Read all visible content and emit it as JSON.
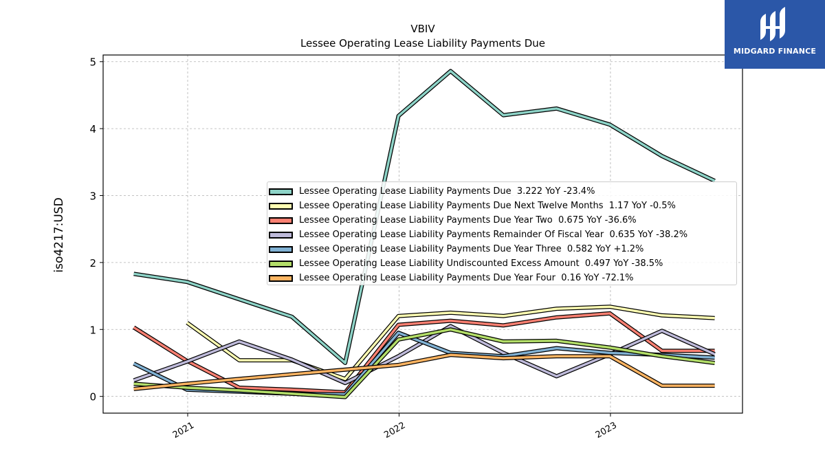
{
  "chart_data": {
    "type": "line",
    "title": "VBIV",
    "subtitle": "Lessee Operating Lease Liability Payments Due",
    "xlabel": "",
    "ylabel": "iso4217:USD",
    "ylim": [
      -0.25,
      5.1
    ],
    "xlim": [
      "2020-08-08",
      "2023-08-17"
    ],
    "yticks": [
      0,
      1,
      2,
      3,
      4,
      5
    ],
    "xticks": [
      "2021",
      "2022",
      "2023"
    ],
    "grid": true,
    "legend_position": "center-right",
    "x": [
      "2020-09-30",
      "2020-12-31",
      "2021-03-31",
      "2021-06-30",
      "2021-09-30",
      "2021-12-31",
      "2022-03-31",
      "2022-06-30",
      "2022-09-30",
      "2022-12-31",
      "2023-03-31",
      "2023-06-30"
    ],
    "series": [
      {
        "name": "Lessee Operating Lease Liability Payments Due",
        "legend_label": "Lessee Operating Lease Liability Payments Due  3.222 YoY -23.4%",
        "color": "#8dd3c7",
        "values": [
          1.83,
          1.71,
          1.45,
          1.19,
          0.5,
          4.19,
          4.86,
          4.2,
          4.3,
          4.06,
          3.59,
          3.22
        ]
      },
      {
        "name": "Lessee Operating Lease Liability Payments Due Next Twelve Months",
        "legend_label": "Lessee Operating Lease Liability Payments Due Next Twelve Months  1.17 YoY -0.5%",
        "color": "#ffffb3",
        "values": [
          null,
          1.1,
          0.54,
          0.54,
          0.26,
          1.2,
          1.25,
          1.2,
          1.31,
          1.34,
          1.21,
          1.17
        ]
      },
      {
        "name": "Lessee Operating Lease Liability Payments Due Year Two",
        "legend_label": "Lessee Operating Lease Liability Payments Due Year Two  0.675 YoY -36.6%",
        "color": "#fb8072",
        "values": [
          1.03,
          0.53,
          0.13,
          0.1,
          0.06,
          1.07,
          1.13,
          1.06,
          1.18,
          1.24,
          0.68,
          0.68
        ]
      },
      {
        "name": "Lessee Operating Lease Liability Payments Remainder Of Fiscal Year",
        "legend_label": "Lessee Operating Lease Liability Payments Remainder Of Fiscal Year  0.635 YoY -38.2%",
        "color": "#bebada",
        "values": [
          0.24,
          0.52,
          0.82,
          0.55,
          0.2,
          0.6,
          1.05,
          0.65,
          0.3,
          0.63,
          0.98,
          0.63
        ]
      },
      {
        "name": "Lessee Operating Lease Liability Payments Due Year Three",
        "legend_label": "Lessee Operating Lease Liability Payments Due Year Three  0.582 YoY +1.2%",
        "color": "#80b1d3",
        "values": [
          0.49,
          0.1,
          0.07,
          0.04,
          0.03,
          0.95,
          0.65,
          0.6,
          0.72,
          0.65,
          0.62,
          0.58
        ]
      },
      {
        "name": "Lessee Operating Lease Liability Undiscounted Excess Amount",
        "legend_label": "Lessee Operating Lease Liability Undiscounted Excess Amount  0.497 YoY -38.5%",
        "color": "#b3de69",
        "values": [
          0.19,
          0.13,
          0.09,
          0.04,
          -0.01,
          0.85,
          1.0,
          0.82,
          0.83,
          0.73,
          0.6,
          0.5
        ]
      },
      {
        "name": "Lessee Operating Lease Liability Payments Due Year Four",
        "legend_label": "Lessee Operating Lease Liability Payments Due Year Four  0.16 YoY -72.1%",
        "color": "#fdb462",
        "values": [
          0.11,
          0.19,
          0.26,
          0.33,
          0.4,
          0.47,
          0.62,
          0.57,
          0.6,
          0.6,
          0.16,
          0.16
        ]
      }
    ]
  },
  "logo": {
    "text": "MIDGARD FINANCE",
    "background": "#2b57a8"
  }
}
